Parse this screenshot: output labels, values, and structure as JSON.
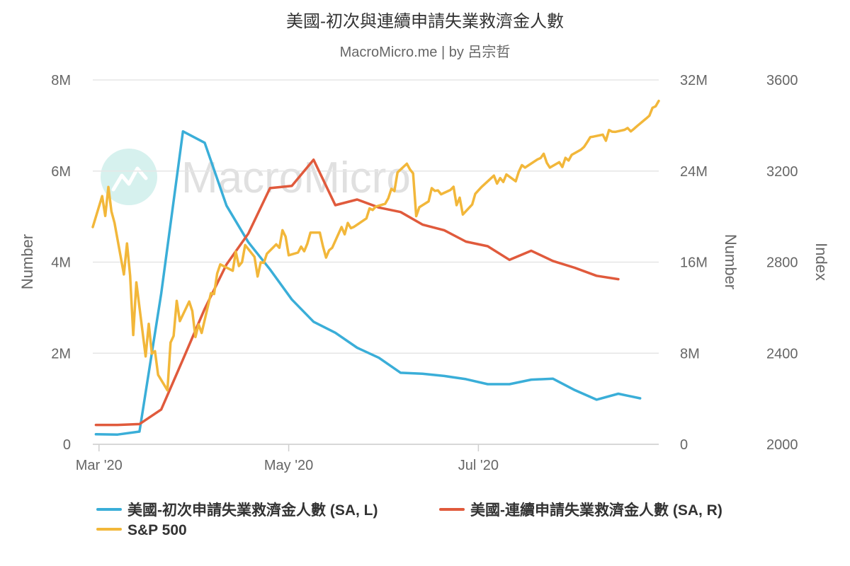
{
  "chart_data": {
    "type": "line",
    "title": "美國-初次與連續申請失業救濟金人數",
    "subtitle": "MacroMicro.me | by 呂宗哲",
    "watermark": "MacroMicro",
    "colors": {
      "initial_claims": "#3aaed8",
      "continuing_claims": "#e05a3c",
      "sp500": "#f2b73a",
      "grid": "#e6e6e6"
    },
    "x_axis": {
      "type": "date",
      "range": [
        "2020-02-28",
        "2020-08-28"
      ],
      "ticks": [
        {
          "date": "2020-03-01",
          "label": "Mar '20"
        },
        {
          "date": "2020-05-01",
          "label": "May '20"
        },
        {
          "date": "2020-07-01",
          "label": "Jul '20"
        }
      ]
    },
    "y_axes": {
      "left": {
        "title": "Number",
        "range": [
          0,
          8000000
        ],
        "ticks": [
          0,
          2000000,
          4000000,
          6000000,
          8000000
        ],
        "tick_labels": [
          "0",
          "2M",
          "4M",
          "6M",
          "8M"
        ]
      },
      "right1": {
        "title": "Number",
        "range": [
          0,
          32000000
        ],
        "ticks": [
          0,
          8000000,
          16000000,
          24000000,
          32000000
        ],
        "tick_labels": [
          "0",
          "8M",
          "16M",
          "24M",
          "32M"
        ]
      },
      "right2": {
        "title": "Index",
        "range": [
          2000,
          3600
        ],
        "ticks": [
          2000,
          2400,
          2800,
          3200,
          3600
        ],
        "tick_labels": [
          "2000",
          "2400",
          "2800",
          "3200",
          "3600"
        ]
      }
    },
    "grid": true,
    "legend_position": "bottom",
    "series": [
      {
        "name": "美國-初次申請失業救濟金人數 (SA, L)",
        "axis": "left",
        "color": "#3aaed8",
        "points": [
          [
            "2020-02-29",
            220000
          ],
          [
            "2020-03-07",
            215000
          ],
          [
            "2020-03-14",
            280000
          ],
          [
            "2020-03-21",
            3310000
          ],
          [
            "2020-03-28",
            6870000
          ],
          [
            "2020-04-04",
            6620000
          ],
          [
            "2020-04-11",
            5240000
          ],
          [
            "2020-04-18",
            4440000
          ],
          [
            "2020-04-25",
            3840000
          ],
          [
            "2020-05-02",
            3180000
          ],
          [
            "2020-05-09",
            2690000
          ],
          [
            "2020-05-16",
            2450000
          ],
          [
            "2020-05-23",
            2120000
          ],
          [
            "2020-05-30",
            1900000
          ],
          [
            "2020-06-06",
            1570000
          ],
          [
            "2020-06-13",
            1550000
          ],
          [
            "2020-06-20",
            1500000
          ],
          [
            "2020-06-27",
            1430000
          ],
          [
            "2020-07-04",
            1320000
          ],
          [
            "2020-07-11",
            1320000
          ],
          [
            "2020-07-18",
            1420000
          ],
          [
            "2020-07-25",
            1440000
          ],
          [
            "2020-08-01",
            1190000
          ],
          [
            "2020-08-08",
            980000
          ],
          [
            "2020-08-15",
            1110000
          ],
          [
            "2020-08-22",
            1010000
          ]
        ]
      },
      {
        "name": "美國-連續申請失業救濟金人數 (SA, R)",
        "axis": "right1",
        "color": "#e05a3c",
        "points": [
          [
            "2020-02-29",
            1700000
          ],
          [
            "2020-03-07",
            1700000
          ],
          [
            "2020-03-14",
            1780000
          ],
          [
            "2020-03-21",
            3060000
          ],
          [
            "2020-03-28",
            7450000
          ],
          [
            "2020-04-04",
            11900000
          ],
          [
            "2020-04-11",
            15800000
          ],
          [
            "2020-04-18",
            18500000
          ],
          [
            "2020-04-25",
            22500000
          ],
          [
            "2020-05-02",
            22700000
          ],
          [
            "2020-05-09",
            25000000
          ],
          [
            "2020-05-16",
            21000000
          ],
          [
            "2020-05-23",
            21500000
          ],
          [
            "2020-05-30",
            20800000
          ],
          [
            "2020-06-06",
            20400000
          ],
          [
            "2020-06-13",
            19300000
          ],
          [
            "2020-06-20",
            18800000
          ],
          [
            "2020-06-27",
            17800000
          ],
          [
            "2020-07-04",
            17400000
          ],
          [
            "2020-07-11",
            16200000
          ],
          [
            "2020-07-18",
            17000000
          ],
          [
            "2020-07-25",
            16100000
          ],
          [
            "2020-08-01",
            15500000
          ],
          [
            "2020-08-08",
            14800000
          ],
          [
            "2020-08-15",
            14500000
          ]
        ]
      },
      {
        "name": "S&P 500",
        "axis": "right2",
        "color": "#f2b73a",
        "points": [
          [
            "2020-02-28",
            2954
          ],
          [
            "2020-03-02",
            3090
          ],
          [
            "2020-03-03",
            3003
          ],
          [
            "2020-03-04",
            3130
          ],
          [
            "2020-03-05",
            3023
          ],
          [
            "2020-03-06",
            2972
          ],
          [
            "2020-03-09",
            2746
          ],
          [
            "2020-03-10",
            2882
          ],
          [
            "2020-03-11",
            2741
          ],
          [
            "2020-03-12",
            2480
          ],
          [
            "2020-03-13",
            2711
          ],
          [
            "2020-03-16",
            2386
          ],
          [
            "2020-03-17",
            2529
          ],
          [
            "2020-03-18",
            2398
          ],
          [
            "2020-03-19",
            2409
          ],
          [
            "2020-03-20",
            2305
          ],
          [
            "2020-03-23",
            2237
          ],
          [
            "2020-03-24",
            2447
          ],
          [
            "2020-03-25",
            2476
          ],
          [
            "2020-03-26",
            2630
          ],
          [
            "2020-03-27",
            2541
          ],
          [
            "2020-03-30",
            2627
          ],
          [
            "2020-03-31",
            2585
          ],
          [
            "2020-04-01",
            2471
          ],
          [
            "2020-04-02",
            2527
          ],
          [
            "2020-04-03",
            2489
          ],
          [
            "2020-04-06",
            2664
          ],
          [
            "2020-04-07",
            2660
          ],
          [
            "2020-04-08",
            2750
          ],
          [
            "2020-04-09",
            2790
          ],
          [
            "2020-04-13",
            2762
          ],
          [
            "2020-04-14",
            2846
          ],
          [
            "2020-04-15",
            2783
          ],
          [
            "2020-04-16",
            2800
          ],
          [
            "2020-04-17",
            2875
          ],
          [
            "2020-04-20",
            2823
          ],
          [
            "2020-04-21",
            2737
          ],
          [
            "2020-04-22",
            2799
          ],
          [
            "2020-04-23",
            2797
          ],
          [
            "2020-04-24",
            2837
          ],
          [
            "2020-04-27",
            2878
          ],
          [
            "2020-04-28",
            2863
          ],
          [
            "2020-04-29",
            2940
          ],
          [
            "2020-04-30",
            2912
          ],
          [
            "2020-05-01",
            2830
          ],
          [
            "2020-05-04",
            2842
          ],
          [
            "2020-05-05",
            2868
          ],
          [
            "2020-05-06",
            2848
          ],
          [
            "2020-05-07",
            2881
          ],
          [
            "2020-05-08",
            2930
          ],
          [
            "2020-05-11",
            2930
          ],
          [
            "2020-05-12",
            2870
          ],
          [
            "2020-05-13",
            2820
          ],
          [
            "2020-05-14",
            2852
          ],
          [
            "2020-05-15",
            2863
          ],
          [
            "2020-05-18",
            2954
          ],
          [
            "2020-05-19",
            2922
          ],
          [
            "2020-05-20",
            2972
          ],
          [
            "2020-05-21",
            2949
          ],
          [
            "2020-05-22",
            2955
          ],
          [
            "2020-05-26",
            2992
          ],
          [
            "2020-05-27",
            3036
          ],
          [
            "2020-05-28",
            3029
          ],
          [
            "2020-05-29",
            3044
          ],
          [
            "2020-06-01",
            3056
          ],
          [
            "2020-06-02",
            3080
          ],
          [
            "2020-06-03",
            3122
          ],
          [
            "2020-06-04",
            3112
          ],
          [
            "2020-06-05",
            3194
          ],
          [
            "2020-06-08",
            3232
          ],
          [
            "2020-06-09",
            3207
          ],
          [
            "2020-06-10",
            3190
          ],
          [
            "2020-06-11",
            3002
          ],
          [
            "2020-06-12",
            3041
          ],
          [
            "2020-06-15",
            3067
          ],
          [
            "2020-06-16",
            3125
          ],
          [
            "2020-06-17",
            3113
          ],
          [
            "2020-06-18",
            3115
          ],
          [
            "2020-06-19",
            3098
          ],
          [
            "2020-06-22",
            3117
          ],
          [
            "2020-06-23",
            3131
          ],
          [
            "2020-06-24",
            3050
          ],
          [
            "2020-06-25",
            3083
          ],
          [
            "2020-06-26",
            3009
          ],
          [
            "2020-06-29",
            3053
          ],
          [
            "2020-06-30",
            3100
          ],
          [
            "2020-07-01",
            3115
          ],
          [
            "2020-07-02",
            3130
          ],
          [
            "2020-07-06",
            3180
          ],
          [
            "2020-07-07",
            3145
          ],
          [
            "2020-07-08",
            3169
          ],
          [
            "2020-07-09",
            3152
          ],
          [
            "2020-07-10",
            3185
          ],
          [
            "2020-07-13",
            3155
          ],
          [
            "2020-07-14",
            3197
          ],
          [
            "2020-07-15",
            3226
          ],
          [
            "2020-07-16",
            3215
          ],
          [
            "2020-07-17",
            3224
          ],
          [
            "2020-07-20",
            3251
          ],
          [
            "2020-07-21",
            3257
          ],
          [
            "2020-07-22",
            3276
          ],
          [
            "2020-07-23",
            3236
          ],
          [
            "2020-07-24",
            3215
          ],
          [
            "2020-07-27",
            3239
          ],
          [
            "2020-07-28",
            3218
          ],
          [
            "2020-07-29",
            3258
          ],
          [
            "2020-07-30",
            3246
          ],
          [
            "2020-07-31",
            3271
          ],
          [
            "2020-08-03",
            3294
          ],
          [
            "2020-08-04",
            3306
          ],
          [
            "2020-08-05",
            3327
          ],
          [
            "2020-08-06",
            3349
          ],
          [
            "2020-08-07",
            3351
          ],
          [
            "2020-08-10",
            3360
          ],
          [
            "2020-08-11",
            3333
          ],
          [
            "2020-08-12",
            3380
          ],
          [
            "2020-08-13",
            3373
          ],
          [
            "2020-08-14",
            3372
          ],
          [
            "2020-08-17",
            3381
          ],
          [
            "2020-08-18",
            3389
          ],
          [
            "2020-08-19",
            3374
          ],
          [
            "2020-08-20",
            3385
          ],
          [
            "2020-08-21",
            3397
          ],
          [
            "2020-08-24",
            3431
          ],
          [
            "2020-08-25",
            3443
          ],
          [
            "2020-08-26",
            3478
          ],
          [
            "2020-08-27",
            3484
          ],
          [
            "2020-08-28",
            3508
          ]
        ]
      }
    ]
  }
}
